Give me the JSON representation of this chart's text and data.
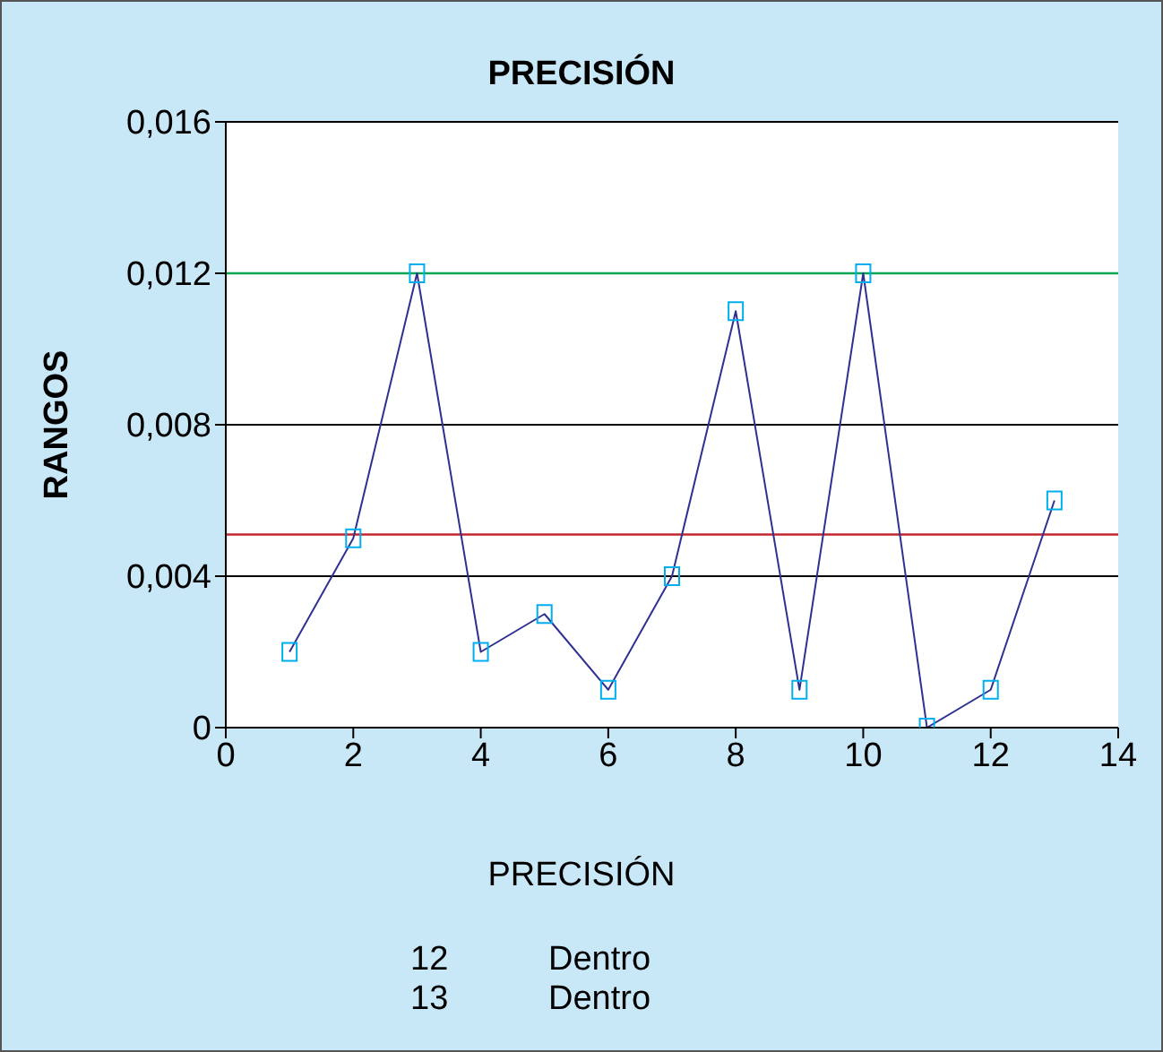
{
  "chart_data": {
    "type": "line",
    "title": "PRECISIÓN",
    "xlabel": "PRECISIÓN",
    "ylabel": "RANGOS",
    "x": [
      1,
      2,
      3,
      4,
      5,
      6,
      7,
      8,
      9,
      10,
      11,
      12,
      13
    ],
    "series": [
      {
        "color": "#2e3192",
        "values": [
          0.002,
          0.005,
          0.012,
          0.002,
          0.003,
          0.001,
          0.004,
          0.011,
          0.001,
          0.012,
          0,
          0.001,
          0.006
        ]
      }
    ],
    "xlim": [
      0,
      14
    ],
    "xticks": [
      0,
      2,
      4,
      6,
      8,
      10,
      12,
      14
    ],
    "ylim": [
      0,
      0.016
    ],
    "yticks": [
      {
        "value": 0,
        "label": "0"
      },
      {
        "value": 0.004,
        "label": "0,004"
      },
      {
        "value": 0.008,
        "label": "0,008"
      },
      {
        "value": 0.012,
        "label": "0,012"
      },
      {
        "value": 0.016,
        "label": "0,016"
      }
    ],
    "ref_lines": [
      {
        "axis": "y",
        "value": 0.012,
        "color": "#00a651"
      },
      {
        "axis": "y",
        "value": 0.0051,
        "color": "#c1272d"
      }
    ],
    "grid": "y",
    "marker": "square",
    "annotations": [
      "12 Dentro",
      "13 Dentro"
    ]
  }
}
